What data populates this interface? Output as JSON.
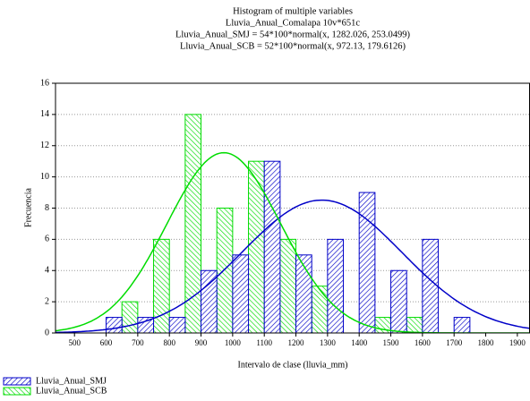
{
  "chart_data": {
    "type": "histogram",
    "title": "Histogram of multiple variables",
    "subtitle": [
      "Lluvia_Anual_Comalapa 10v*651c",
      "Lluvia_Anual_SMJ = 54*100*normal(x, 1282.026, 253.0499)",
      "Lluvia_Anual_SCB = 52*100*normal(x, 972.13, 179.6126)"
    ],
    "x_label": "Intervalo de clase (lluvia_mm)",
    "y_label": "Frecuencia",
    "bins": [
      550,
      650,
      750,
      850,
      950,
      1050,
      1150,
      1250,
      1350,
      1450,
      1550,
      1650,
      1750
    ],
    "series": [
      {
        "name": "Lluvia_Anual_SMJ",
        "color": "#0000c8",
        "values": [
          1,
          1,
          1,
          4,
          5,
          11,
          5,
          6,
          9,
          4,
          6,
          1
        ],
        "fit": {
          "n": 54,
          "scale": 100,
          "mean": 1282.026,
          "sd": 253.0499
        }
      },
      {
        "name": "Lluvia_Anual_SCB",
        "color": "#00dc00",
        "values": [
          0,
          2,
          6,
          14,
          8,
          11,
          6,
          3,
          0,
          1,
          1,
          0
        ],
        "fit": {
          "n": 52,
          "scale": 100,
          "mean": 972.13,
          "sd": 179.6126
        }
      }
    ],
    "xlim": [
      440,
      1940
    ],
    "xticks": [
      500,
      600,
      700,
      800,
      900,
      1000,
      1100,
      1200,
      1300,
      1400,
      1500,
      1600,
      1700,
      1800,
      1900
    ],
    "ylim": [
      0,
      16
    ],
    "yticks": [
      0,
      2,
      4,
      6,
      8,
      10,
      12,
      14,
      16
    ],
    "grid": true,
    "legend": "bottom-left"
  }
}
